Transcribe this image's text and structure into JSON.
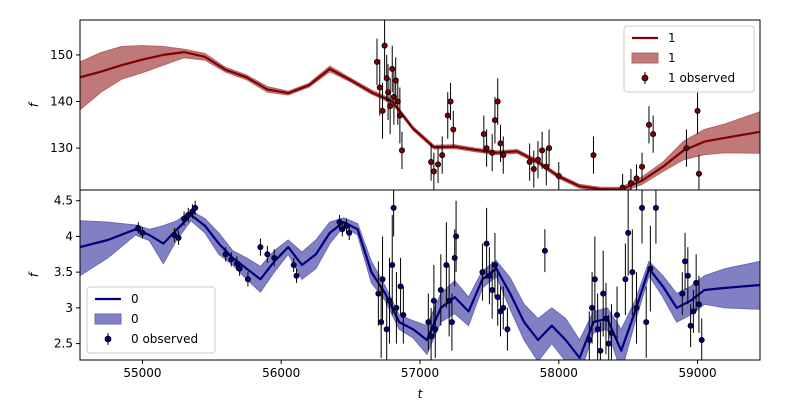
{
  "chart_data": [
    {
      "type": "line",
      "panel": "top",
      "xlabel": "",
      "ylabel": "f",
      "xlim": [
        54550,
        59450
      ],
      "ylim": [
        121,
        157.5
      ],
      "yticks": [
        130,
        140,
        150
      ],
      "color": "#7f0000",
      "band_color": "#b56262",
      "legend": {
        "placement": "top-right",
        "entries": [
          "1",
          "1",
          "1 observed"
        ]
      },
      "series": [
        {
          "name": "1",
          "kind": "mean",
          "x": [
            54550,
            54700,
            54850,
            55000,
            55150,
            55300,
            55450,
            55600,
            55750,
            55900,
            56050,
            56200,
            56350,
            56500,
            56650,
            56800,
            56950,
            57100,
            57250,
            57400,
            57550,
            57700,
            57850,
            58000,
            58150,
            58300,
            58450,
            58600,
            58750,
            58900,
            59050,
            59200,
            59450
          ],
          "values": [
            145.2,
            146.4,
            147.8,
            149.0,
            150.0,
            150.6,
            149.6,
            146.8,
            145.2,
            142.6,
            141.8,
            143.5,
            147.0,
            144.6,
            142.0,
            140.0,
            134.2,
            130.2,
            130.3,
            129.6,
            129.0,
            129.3,
            127.0,
            123.9,
            121.8,
            121.2,
            121.1,
            123.0,
            126.0,
            129.5,
            131.4,
            132.2,
            133.5
          ]
        },
        {
          "name": "1",
          "kind": "band",
          "x": [
            54550,
            54700,
            54850,
            55000,
            55150,
            55300,
            55450,
            55600,
            55750,
            55900,
            56050,
            56200,
            56350,
            56500,
            56650,
            56800,
            56950,
            57100,
            57250,
            57400,
            57550,
            57700,
            57850,
            58000,
            58150,
            58300,
            58450,
            58600,
            58750,
            58900,
            59050,
            59200,
            59450
          ],
          "upper": [
            148.5,
            150.5,
            151.8,
            152.0,
            151.8,
            151.2,
            150.3,
            147.3,
            145.7,
            143.2,
            142.2,
            143.9,
            147.6,
            145.0,
            142.5,
            140.4,
            134.6,
            130.6,
            130.7,
            130.0,
            129.4,
            129.7,
            127.4,
            124.3,
            122.2,
            121.6,
            121.6,
            123.8,
            127.0,
            131.5,
            134.0,
            135.2,
            137.8
          ],
          "lower": [
            138.2,
            142.0,
            144.8,
            146.2,
            147.8,
            149.4,
            148.9,
            146.3,
            144.7,
            142.0,
            141.4,
            143.1,
            146.4,
            144.2,
            141.6,
            139.6,
            133.8,
            129.8,
            129.9,
            129.2,
            128.6,
            128.9,
            126.6,
            123.5,
            121.4,
            120.8,
            120.6,
            122.2,
            125.0,
            127.5,
            128.6,
            129.0,
            128.9
          ]
        },
        {
          "name": "1 observed",
          "kind": "observed",
          "x": [
            56690,
            56710,
            56730,
            56745,
            56760,
            56770,
            56785,
            56800,
            56812,
            56825,
            56840,
            56855,
            56870,
            57080,
            57100,
            57130,
            57160,
            57200,
            57220,
            57240,
            57460,
            57480,
            57520,
            57540,
            57560,
            57580,
            57600,
            57790,
            57820,
            57850,
            57880,
            57910,
            57930,
            58000,
            58250,
            58460,
            58520,
            58560,
            58600,
            58650,
            58680,
            58920,
            59000,
            59010
          ],
          "values": [
            148.5,
            143.0,
            138.0,
            152.0,
            145.0,
            142.0,
            139.0,
            147.0,
            141.0,
            144.5,
            140.0,
            137.0,
            129.5,
            127.0,
            125.0,
            126.5,
            128.5,
            137.0,
            140.0,
            134.0,
            133.0,
            130.0,
            129.0,
            136.0,
            140.0,
            131.0,
            128.5,
            127.0,
            125.5,
            127.5,
            129.5,
            126.0,
            130.0,
            124.0,
            128.5,
            121.5,
            122.5,
            123.5,
            126.0,
            135.0,
            133.0,
            130.0,
            138.0,
            124.5
          ],
          "errors": [
            5,
            6,
            6,
            7,
            5,
            6,
            6,
            5,
            6,
            5,
            5,
            6,
            4,
            4,
            4,
            4,
            4,
            5,
            4,
            4,
            4,
            4,
            4,
            5,
            5,
            4,
            4,
            4,
            4,
            4,
            4,
            4,
            4,
            3,
            4,
            3,
            3,
            3,
            3,
            4,
            4,
            4,
            5,
            4
          ]
        }
      ]
    },
    {
      "type": "line",
      "panel": "bottom",
      "xlabel": "t",
      "ylabel": "f",
      "xlim": [
        54550,
        59450
      ],
      "ylim": [
        2.27,
        4.65
      ],
      "xticks": [
        55000,
        56000,
        57000,
        58000,
        59000
      ],
      "yticks": [
        2.5,
        3.0,
        3.5,
        4.0,
        4.5
      ],
      "color": "#00007f",
      "band_color": "#6a6ab8",
      "legend": {
        "placement": "bottom-left",
        "entries": [
          "0",
          "0",
          "0 observed"
        ]
      },
      "series": [
        {
          "name": "0",
          "kind": "mean",
          "x": [
            54550,
            54750,
            54950,
            55050,
            55150,
            55250,
            55350,
            55450,
            55550,
            55650,
            55750,
            55850,
            55950,
            56050,
            56150,
            56250,
            56350,
            56450,
            56550,
            56650,
            56750,
            56850,
            56950,
            57050,
            57150,
            57250,
            57350,
            57450,
            57550,
            57650,
            57750,
            57850,
            57950,
            58050,
            58150,
            58250,
            58350,
            58450,
            58550,
            58650,
            58750,
            58850,
            58950,
            59050,
            59200,
            59450
          ],
          "values": [
            3.85,
            3.95,
            4.1,
            4.02,
            3.9,
            4.1,
            4.3,
            4.15,
            3.9,
            3.7,
            3.55,
            3.4,
            3.65,
            3.85,
            3.6,
            3.75,
            4.05,
            4.2,
            4.1,
            3.5,
            3.2,
            2.8,
            2.7,
            2.55,
            3.0,
            3.15,
            2.95,
            3.4,
            3.55,
            3.2,
            2.8,
            2.55,
            2.75,
            2.55,
            2.3,
            2.8,
            2.85,
            2.4,
            2.95,
            3.55,
            3.3,
            3.0,
            3.1,
            3.25,
            3.28,
            3.32
          ]
        },
        {
          "name": "0",
          "kind": "band",
          "x": [
            54550,
            54750,
            54950,
            55050,
            55150,
            55250,
            55350,
            55450,
            55550,
            55650,
            55750,
            55850,
            55950,
            56050,
            56150,
            56250,
            56350,
            56450,
            56550,
            56650,
            56750,
            56850,
            56950,
            57050,
            57150,
            57250,
            57350,
            57450,
            57550,
            57650,
            57750,
            57850,
            57950,
            58050,
            58150,
            58250,
            58350,
            58450,
            58550,
            58650,
            58750,
            58850,
            58950,
            59050,
            59200,
            59450
          ],
          "upper": [
            4.22,
            4.2,
            4.16,
            4.1,
            4.15,
            4.22,
            4.36,
            4.25,
            4.05,
            3.8,
            3.7,
            3.58,
            3.8,
            3.95,
            3.78,
            3.95,
            4.2,
            4.26,
            4.18,
            3.65,
            3.3,
            2.9,
            2.82,
            2.75,
            3.2,
            3.38,
            3.15,
            3.52,
            3.66,
            3.42,
            3.05,
            2.85,
            3.0,
            2.85,
            2.55,
            2.95,
            3.0,
            2.7,
            3.1,
            3.65,
            3.45,
            3.2,
            3.3,
            3.45,
            3.55,
            3.65
          ],
          "lower": [
            3.45,
            3.7,
            4.02,
            3.94,
            3.62,
            3.96,
            4.22,
            4.05,
            3.75,
            3.6,
            3.4,
            3.22,
            3.5,
            3.75,
            3.4,
            3.55,
            3.9,
            4.14,
            4.02,
            3.35,
            3.1,
            2.7,
            2.58,
            2.35,
            2.8,
            2.92,
            2.75,
            3.28,
            3.44,
            2.98,
            2.55,
            2.25,
            2.5,
            2.25,
            2.05,
            2.65,
            2.7,
            2.1,
            2.8,
            3.45,
            3.15,
            2.8,
            2.9,
            3.05,
            3.0,
            2.98
          ]
        },
        {
          "name": "0 observed",
          "kind": "observed",
          "x": [
            54970,
            55000,
            55230,
            55260,
            55300,
            55330,
            55360,
            55380,
            55600,
            55640,
            55680,
            55700,
            55760,
            55850,
            55900,
            55950,
            56090,
            56110,
            56420,
            56440,
            56470,
            56490,
            56700,
            56720,
            56730,
            56760,
            56780,
            56800,
            56810,
            56830,
            56860,
            56880,
            57060,
            57080,
            57100,
            57110,
            57150,
            57190,
            57210,
            57230,
            57250,
            57260,
            57450,
            57480,
            57500,
            57520,
            57540,
            57560,
            57580,
            57600,
            57630,
            57900,
            58220,
            58240,
            58260,
            58280,
            58300,
            58320,
            58340,
            58360,
            58380,
            58420,
            58480,
            58500,
            58530,
            58560,
            58600,
            58630,
            58660,
            58700,
            58890,
            58910,
            58930,
            58950,
            58970,
            58990,
            59010,
            59030
          ],
          "values": [
            4.12,
            4.05,
            4.02,
            3.98,
            4.25,
            4.3,
            4.35,
            4.4,
            3.75,
            3.68,
            3.62,
            3.55,
            3.4,
            3.85,
            3.75,
            3.7,
            3.6,
            3.45,
            4.2,
            4.1,
            4.15,
            4.05,
            3.2,
            2.8,
            3.4,
            2.7,
            3.1,
            3.6,
            4.4,
            3.0,
            3.3,
            2.9,
            2.8,
            2.6,
            3.1,
            2.7,
            3.25,
            3.6,
            3.1,
            2.8,
            3.7,
            4.0,
            3.5,
            3.9,
            3.45,
            3.25,
            3.6,
            3.15,
            2.95,
            3.0,
            2.7,
            3.8,
            2.55,
            3.0,
            3.4,
            2.7,
            2.4,
            3.2,
            2.85,
            2.5,
            2.65,
            2.9,
            3.4,
            4.05,
            3.5,
            3.0,
            4.4,
            2.8,
            3.55,
            4.4,
            3.2,
            3.65,
            3.45,
            2.75,
            2.95,
            3.35,
            3.05,
            2.55
          ],
          "errors": [
            0.08,
            0.08,
            0.1,
            0.1,
            0.1,
            0.1,
            0.1,
            0.1,
            0.1,
            0.1,
            0.1,
            0.1,
            0.1,
            0.12,
            0.12,
            0.12,
            0.1,
            0.1,
            0.1,
            0.1,
            0.1,
            0.1,
            0.45,
            0.5,
            0.6,
            0.45,
            0.6,
            0.7,
            0.4,
            0.5,
            0.4,
            0.4,
            0.4,
            0.4,
            0.5,
            0.4,
            0.5,
            0.6,
            0.5,
            0.4,
            0.4,
            0.5,
            0.4,
            0.5,
            0.4,
            0.4,
            0.45,
            0.4,
            0.35,
            0.3,
            0.3,
            0.3,
            0.4,
            0.5,
            0.6,
            0.5,
            0.4,
            0.6,
            0.5,
            0.4,
            0.4,
            0.4,
            0.5,
            0.6,
            0.6,
            0.5,
            0.5,
            0.5,
            0.6,
            0.5,
            0.3,
            0.4,
            0.4,
            0.3,
            0.3,
            0.4,
            0.4,
            0.3
          ]
        }
      ]
    }
  ]
}
